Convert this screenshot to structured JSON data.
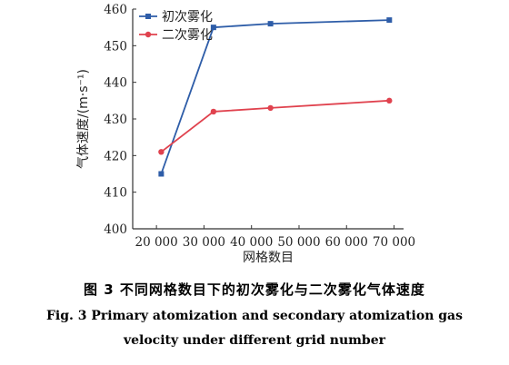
{
  "chart_data": {
    "type": "line",
    "x": [
      21000,
      32000,
      44000,
      69000
    ],
    "xlim": [
      15000,
      72000
    ],
    "ylim": [
      400,
      460
    ],
    "x_ticks": [
      20000,
      30000,
      40000,
      50000,
      60000,
      70000
    ],
    "x_tick_labels": [
      "20 000",
      "30 000",
      "40 000",
      "50 000",
      "60 000",
      "70 000"
    ],
    "y_ticks": [
      400,
      410,
      420,
      430,
      440,
      450,
      460
    ],
    "y_tick_labels": [
      "400",
      "410",
      "420",
      "430",
      "440",
      "450",
      "460"
    ],
    "xlabel": "网格数目",
    "ylabel": "气体速度/(m·s⁻¹)",
    "grid": false,
    "legend_position": "top-left",
    "series": [
      {
        "name": "初次雾化",
        "color": "#2e5da8",
        "marker": "square",
        "values": [
          415,
          455,
          456,
          457
        ]
      },
      {
        "name": "二次雾化",
        "color": "#e0424e",
        "marker": "circle",
        "values": [
          421,
          432,
          433,
          435
        ]
      }
    ]
  },
  "caption": {
    "zh": "图 3    不同网格数目下的初次雾化与二次雾化气体速度",
    "en_line1": "Fig. 3    Primary atomization and secondary atomization gas",
    "en_line2": "velocity under different grid number"
  }
}
